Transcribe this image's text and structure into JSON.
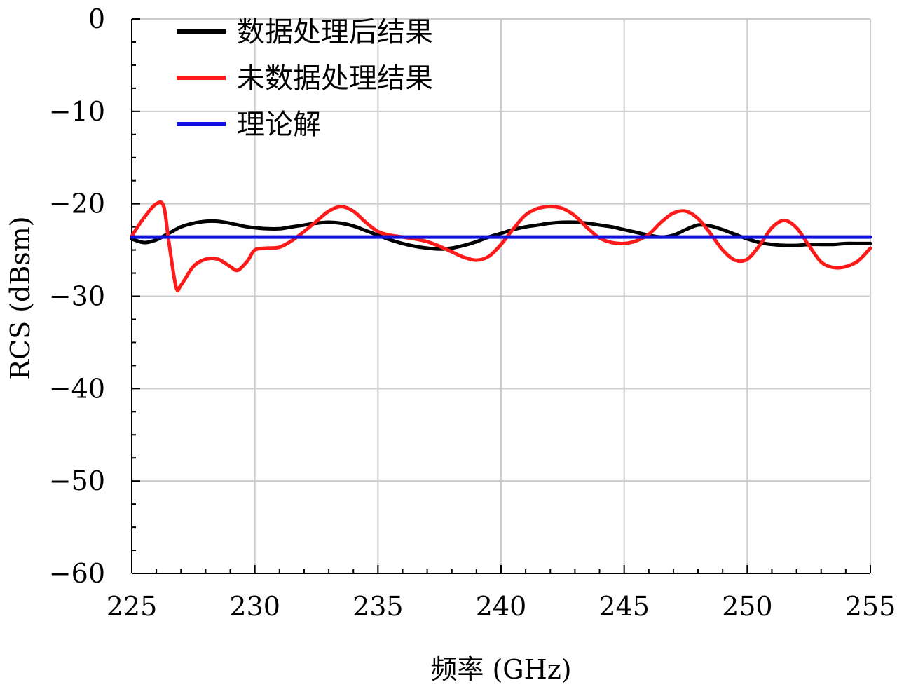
{
  "chart_data": {
    "type": "line",
    "xlabel": "频率 (GHz)",
    "ylabel": "RCS (dBsm)",
    "xlim": [
      225,
      255
    ],
    "ylim": [
      -60,
      0
    ],
    "xticks": [
      225,
      230,
      235,
      240,
      245,
      250,
      255
    ],
    "yticks": [
      0,
      -10,
      -20,
      -30,
      -40,
      -50,
      -60
    ],
    "grid": true,
    "legend_position": "top-left",
    "series": [
      {
        "name": "数据处理后结果",
        "color": "#000000",
        "x": [
          225,
          225.5,
          226,
          226.5,
          227,
          227.5,
          228,
          228.5,
          229,
          229.5,
          230,
          230.5,
          231,
          231.5,
          232,
          232.5,
          233,
          233.5,
          234,
          234.5,
          235,
          235.5,
          236,
          236.5,
          237,
          237.5,
          238,
          238.5,
          239,
          239.5,
          240,
          240.5,
          241,
          241.5,
          242,
          242.5,
          243,
          243.5,
          244,
          244.5,
          245,
          245.5,
          246,
          246.5,
          247,
          247.5,
          248,
          248.5,
          249,
          249.5,
          250,
          250.5,
          251,
          251.5,
          252,
          252.5,
          253,
          253.5,
          254,
          254.5,
          255
        ],
        "values": [
          -23.8,
          -24.2,
          -23.9,
          -23.2,
          -22.5,
          -22.1,
          -21.9,
          -21.9,
          -22.1,
          -22.4,
          -22.6,
          -22.7,
          -22.7,
          -22.5,
          -22.3,
          -22.1,
          -22.0,
          -22.1,
          -22.4,
          -22.9,
          -23.4,
          -23.9,
          -24.3,
          -24.6,
          -24.8,
          -24.9,
          -24.8,
          -24.5,
          -24.1,
          -23.6,
          -23.2,
          -22.8,
          -22.5,
          -22.3,
          -22.1,
          -22.0,
          -22.0,
          -22.1,
          -22.3,
          -22.5,
          -22.8,
          -23.1,
          -23.4,
          -23.6,
          -23.4,
          -22.8,
          -22.3,
          -22.4,
          -22.8,
          -23.3,
          -23.8,
          -24.2,
          -24.4,
          -24.5,
          -24.5,
          -24.4,
          -24.4,
          -24.4,
          -24.3,
          -24.3,
          -24.3
        ]
      },
      {
        "name": "未数据处理结果",
        "color": "#ff1a1a",
        "x": [
          225,
          225.5,
          226,
          226.3,
          226.5,
          226.8,
          227,
          227.5,
          228,
          228.5,
          229,
          229.3,
          229.7,
          230,
          230.5,
          231,
          231.5,
          232,
          232.5,
          233,
          233.5,
          234,
          234.5,
          235,
          235.5,
          236,
          236.5,
          237,
          237.5,
          238,
          238.5,
          239,
          239.5,
          240,
          240.5,
          241,
          241.5,
          242,
          242.5,
          243,
          243.5,
          244,
          244.5,
          245,
          245.5,
          246,
          246.5,
          247,
          247.5,
          248,
          248.5,
          249,
          249.5,
          250,
          250.5,
          251,
          251.5,
          252,
          252.5,
          253,
          253.5,
          254,
          254.5,
          255
        ],
        "values": [
          -23.5,
          -21.5,
          -20.0,
          -20.3,
          -24.0,
          -29.0,
          -28.8,
          -26.8,
          -26.0,
          -26.0,
          -26.8,
          -27.2,
          -26.2,
          -25.0,
          -24.8,
          -24.7,
          -24.0,
          -23.0,
          -21.9,
          -20.8,
          -20.3,
          -20.8,
          -22.0,
          -23.0,
          -23.4,
          -23.6,
          -23.8,
          -24.1,
          -24.6,
          -25.2,
          -25.8,
          -26.1,
          -25.7,
          -24.4,
          -22.7,
          -21.2,
          -20.5,
          -20.3,
          -20.5,
          -21.3,
          -22.6,
          -23.7,
          -24.2,
          -24.3,
          -24.0,
          -23.3,
          -22.0,
          -21.0,
          -20.8,
          -21.6,
          -23.2,
          -25.0,
          -26.1,
          -26.0,
          -24.5,
          -22.6,
          -21.8,
          -22.6,
          -24.5,
          -26.3,
          -26.9,
          -26.8,
          -26.2,
          -24.8
        ]
      },
      {
        "name": "理论解",
        "color": "#1010e0",
        "x": [
          225,
          255
        ],
        "values": [
          -23.6,
          -23.6
        ]
      }
    ]
  }
}
